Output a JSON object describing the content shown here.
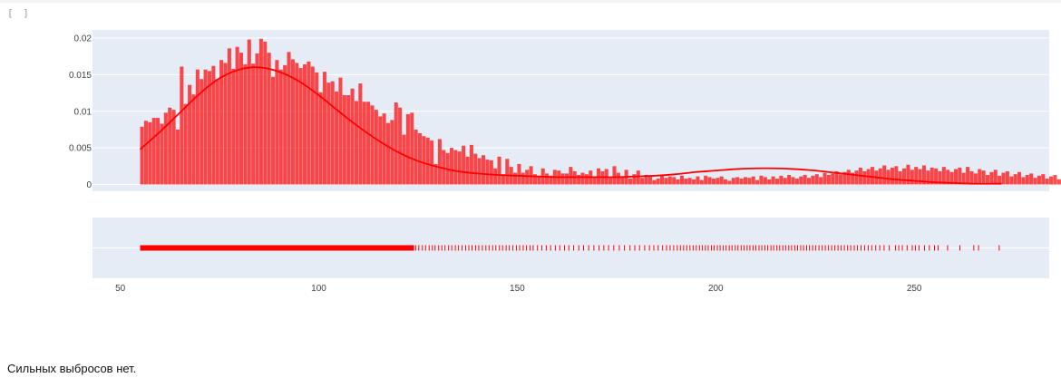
{
  "cell": {
    "prompt": "[ ]"
  },
  "output_text": "Сильных выбросов нет.",
  "colors": {
    "bars": "#ff0000",
    "kde": "#ff0000",
    "plot_bg": "#e5ecf6",
    "grid": "#ffffff",
    "tick_text": "#444444"
  },
  "chart_data": {
    "type": "histogram",
    "x_range": [
      43,
      284
    ],
    "xticks": [
      50,
      100,
      150,
      200,
      250
    ],
    "xtick_labels": [
      "50",
      "100",
      "150",
      "200",
      "250"
    ],
    "ylim": [
      0,
      0.0202
    ],
    "yticks": [
      0,
      0.005,
      0.01,
      0.015,
      0.02
    ],
    "ytick_labels": [
      "0",
      "0.005",
      "0.01",
      "0.015",
      "0.02"
    ],
    "bin_width": 1,
    "bins_start": 55,
    "bar_opacity": 0.7,
    "density": [
      0.0079,
      0.0087,
      0.0085,
      0.0091,
      0.0091,
      0.0083,
      0.0098,
      0.0105,
      0.0102,
      0.0075,
      0.0161,
      0.011,
      0.0136,
      0.0123,
      0.0157,
      0.0144,
      0.0157,
      0.0155,
      0.0162,
      0.0144,
      0.017,
      0.0166,
      0.0186,
      0.0158,
      0.0188,
      0.018,
      0.0164,
      0.0198,
      0.0165,
      0.0179,
      0.0199,
      0.0195,
      0.018,
      0.0147,
      0.017,
      0.0157,
      0.0163,
      0.0181,
      0.0171,
      0.0166,
      0.0159,
      0.0164,
      0.0168,
      0.0161,
      0.0153,
      0.0126,
      0.0154,
      0.0139,
      0.0141,
      0.0127,
      0.0146,
      0.0122,
      0.0122,
      0.0131,
      0.0114,
      0.0138,
      0.0113,
      0.0113,
      0.0108,
      0.0102,
      0.0093,
      0.0097,
      0.0084,
      0.0088,
      0.0112,
      0.0105,
      0.0068,
      0.0096,
      0.0098,
      0.0075,
      0.007,
      0.0066,
      0.0064,
      0.006,
      0.0028,
      0.0062,
      0.0047,
      0.0043,
      0.005,
      0.0047,
      0.0045,
      0.0053,
      0.0038,
      0.0054,
      0.0042,
      0.0036,
      0.004,
      0.0034,
      0.0033,
      0.0022,
      0.0038,
      0.0014,
      0.0035,
      0.0024,
      0.0016,
      0.0028,
      0.0016,
      0.002,
      0.0025,
      0.0014,
      0.0012,
      0.0022,
      0.0015,
      0.0012,
      0.002,
      0.0019,
      0.0015,
      0.0015,
      0.0024,
      0.0018,
      0.0013,
      0.0016,
      0.0014,
      0.0019,
      0.0011,
      0.0022,
      0.0018,
      0.0021,
      0.0009,
      0.0025,
      0.0016,
      0.0011,
      0.002,
      0.0008,
      0.0014,
      0.0019,
      0.0009,
      0.0013,
      0.0011,
      0.0006,
      0.0008,
      0.0013,
      0.0009,
      0.0011,
      0.001,
      0.0007,
      0.0012,
      0.0008,
      0.0009,
      0.0007,
      0.0011,
      0.0006,
      0.0012,
      0.001,
      0.0008,
      0.0009,
      0.0011,
      0.0007,
      0.0005,
      0.0009,
      0.001,
      0.0008,
      0.001,
      0.0009,
      0.0011,
      0.0006,
      0.0012,
      0.001,
      0.0007,
      0.0011,
      0.0008,
      0.0012,
      0.0009,
      0.0013,
      0.001,
      0.0008,
      0.0011,
      0.0013,
      0.0009,
      0.0012,
      0.0014,
      0.001,
      0.0016,
      0.0013,
      0.0015,
      0.0018,
      0.0014,
      0.0017,
      0.002,
      0.0016,
      0.0019,
      0.0023,
      0.0018,
      0.0021,
      0.0024,
      0.0019,
      0.0022,
      0.0026,
      0.002,
      0.0023,
      0.0025,
      0.0018,
      0.0022,
      0.0027,
      0.002,
      0.0024,
      0.0021,
      0.0026,
      0.0019,
      0.0023,
      0.0022,
      0.0018,
      0.0024,
      0.002,
      0.0017,
      0.0021,
      0.0023,
      0.0016,
      0.0024,
      0.0018,
      0.0015,
      0.0021,
      0.0019,
      0.0013,
      0.0017,
      0.002,
      0.0012,
      0.0016,
      0.0018,
      0.0011,
      0.0014,
      0.0017,
      0.001,
      0.0013,
      0.0015,
      0.0009,
      0.0012,
      0.0014,
      0.0008,
      0.0011,
      0.0013,
      0.0007,
      0.001,
      0.0012,
      0.0006,
      0.0009,
      0.001,
      0.0005,
      0.0008,
      0.0009,
      0.0004,
      0.0007,
      0.0008,
      0.0003,
      0.0006,
      0.0007,
      0.0003,
      0.0005,
      0.0006,
      0.0002,
      0.0004,
      0.0005,
      0.0002,
      0.0003,
      0.0004,
      0.0001,
      0.0003,
      0.0002,
      0.0001,
      0.0002,
      0.0001
    ],
    "kde": {
      "name": "kde",
      "x": [
        55,
        60,
        65,
        70,
        75,
        80,
        85,
        90,
        95,
        100,
        105,
        110,
        115,
        120,
        125,
        130,
        135,
        140,
        145,
        150,
        155,
        160,
        165,
        170,
        175,
        180,
        185,
        190,
        195,
        200,
        205,
        210,
        215,
        220,
        225,
        230,
        235,
        240,
        245,
        250,
        255,
        260,
        265,
        270,
        272
      ],
      "y": [
        0.0048,
        0.0072,
        0.0098,
        0.0124,
        0.0145,
        0.0157,
        0.016,
        0.0154,
        0.0141,
        0.0122,
        0.01,
        0.0079,
        0.006,
        0.0044,
        0.0032,
        0.0024,
        0.0018,
        0.0015,
        0.0013,
        0.0012,
        0.0011,
        0.001,
        0.001,
        0.001,
        0.001,
        0.0011,
        0.0012,
        0.0014,
        0.0017,
        0.0019,
        0.0021,
        0.0022,
        0.0022,
        0.0021,
        0.0019,
        0.0016,
        0.0013,
        0.001,
        0.0007,
        0.0005,
        0.0003,
        0.0002,
        0.0001,
        0.0001,
        0.0001
      ]
    },
    "rug": {
      "dense_range": [
        55,
        124
      ],
      "points": [
        124.4,
        125.2,
        126.1,
        126.9,
        127.8,
        128.6,
        129.3,
        130.2,
        131.0,
        131.8,
        132.7,
        133.5,
        134.4,
        135.2,
        136.1,
        137.0,
        137.8,
        138.6,
        139.5,
        140.3,
        141.2,
        142.1,
        142.9,
        143.8,
        144.6,
        145.5,
        146.3,
        147.2,
        148.0,
        148.9,
        149.8,
        150.6,
        151.5,
        152.3,
        153.2,
        154.0,
        155.1,
        156.2,
        157.3,
        158.4,
        159.6,
        160.7,
        161.9,
        163.0,
        164.2,
        165.5,
        166.7,
        168.0,
        169.3,
        170.6,
        171.8,
        173.0,
        174.3,
        175.7,
        177.0,
        178.4,
        179.6,
        180.8,
        182.1,
        183.3,
        184.4,
        185.5,
        186.6,
        187.6,
        188.5,
        189.4,
        190.3,
        191.1,
        191.9,
        192.7,
        193.5,
        194.3,
        195.1,
        195.9,
        196.6,
        197.4,
        198.1,
        198.9,
        199.6,
        200.4,
        201.1,
        201.9,
        202.6,
        203.4,
        204.1,
        204.9,
        205.6,
        206.4,
        207.1,
        207.9,
        208.6,
        209.4,
        210.1,
        210.9,
        211.6,
        212.4,
        213.1,
        213.9,
        214.6,
        215.4,
        216.1,
        216.9,
        217.6,
        218.4,
        219.1,
        219.9,
        220.6,
        221.4,
        222.1,
        222.9,
        223.6,
        224.4,
        225.2,
        226.0,
        226.8,
        227.6,
        228.4,
        229.2,
        230.0,
        230.8,
        231.6,
        232.4,
        233.2,
        234.0,
        234.9,
        235.7,
        236.6,
        237.5,
        238.4,
        239.3,
        240.3,
        241.3,
        242.4,
        243.7,
        245.3,
        246.1,
        247.0,
        248.2,
        249.5,
        250.3,
        251.2,
        252.6,
        253.8,
        255.1,
        256.0,
        258.4,
        261.5,
        265.0,
        266.2,
        271.4
      ]
    }
  }
}
